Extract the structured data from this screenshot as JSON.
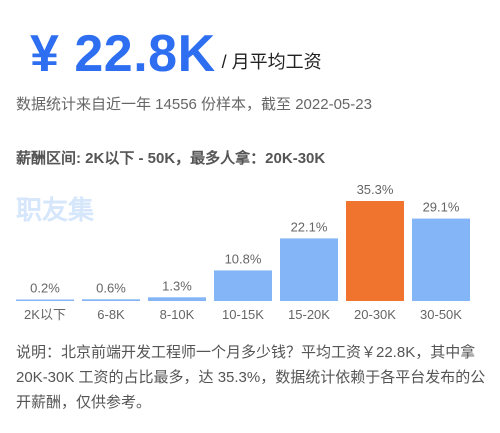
{
  "header": {
    "salary": "¥ 22.8K",
    "unit": "/ 月平均工资",
    "source": "数据统计来自近一年 14556 份样本，截至 2022-05-23",
    "range_text": "薪酬区间: 2K以下 - 50K，最多人拿：20K-30K",
    "watermark": "职友集"
  },
  "chart_data": {
    "type": "bar",
    "categories": [
      "2K以下",
      "6-8K",
      "8-10K",
      "10-15K",
      "15-20K",
      "20-30K",
      "30-50K"
    ],
    "values": [
      0.2,
      0.6,
      1.3,
      10.8,
      22.1,
      35.3,
      29.1
    ],
    "value_labels": [
      "0.2%",
      "0.6%",
      "1.3%",
      "10.8%",
      "22.1%",
      "35.3%",
      "29.1%"
    ],
    "highlight_index": 5,
    "ylim": [
      0,
      35.3
    ],
    "colors": {
      "bar": "#84b5f7",
      "highlight": "#f0742e",
      "label": "#666666"
    },
    "title": "",
    "xlabel": "",
    "ylabel": ""
  },
  "footer": {
    "description": "说明：北京前端开发工程师一个月多少钱？平均工资￥22.8K，其中拿 20K-30K 工资的占比最多，达 35.3%，数据统计依赖于各平台发布的公开薪酬，仅供参考。"
  }
}
